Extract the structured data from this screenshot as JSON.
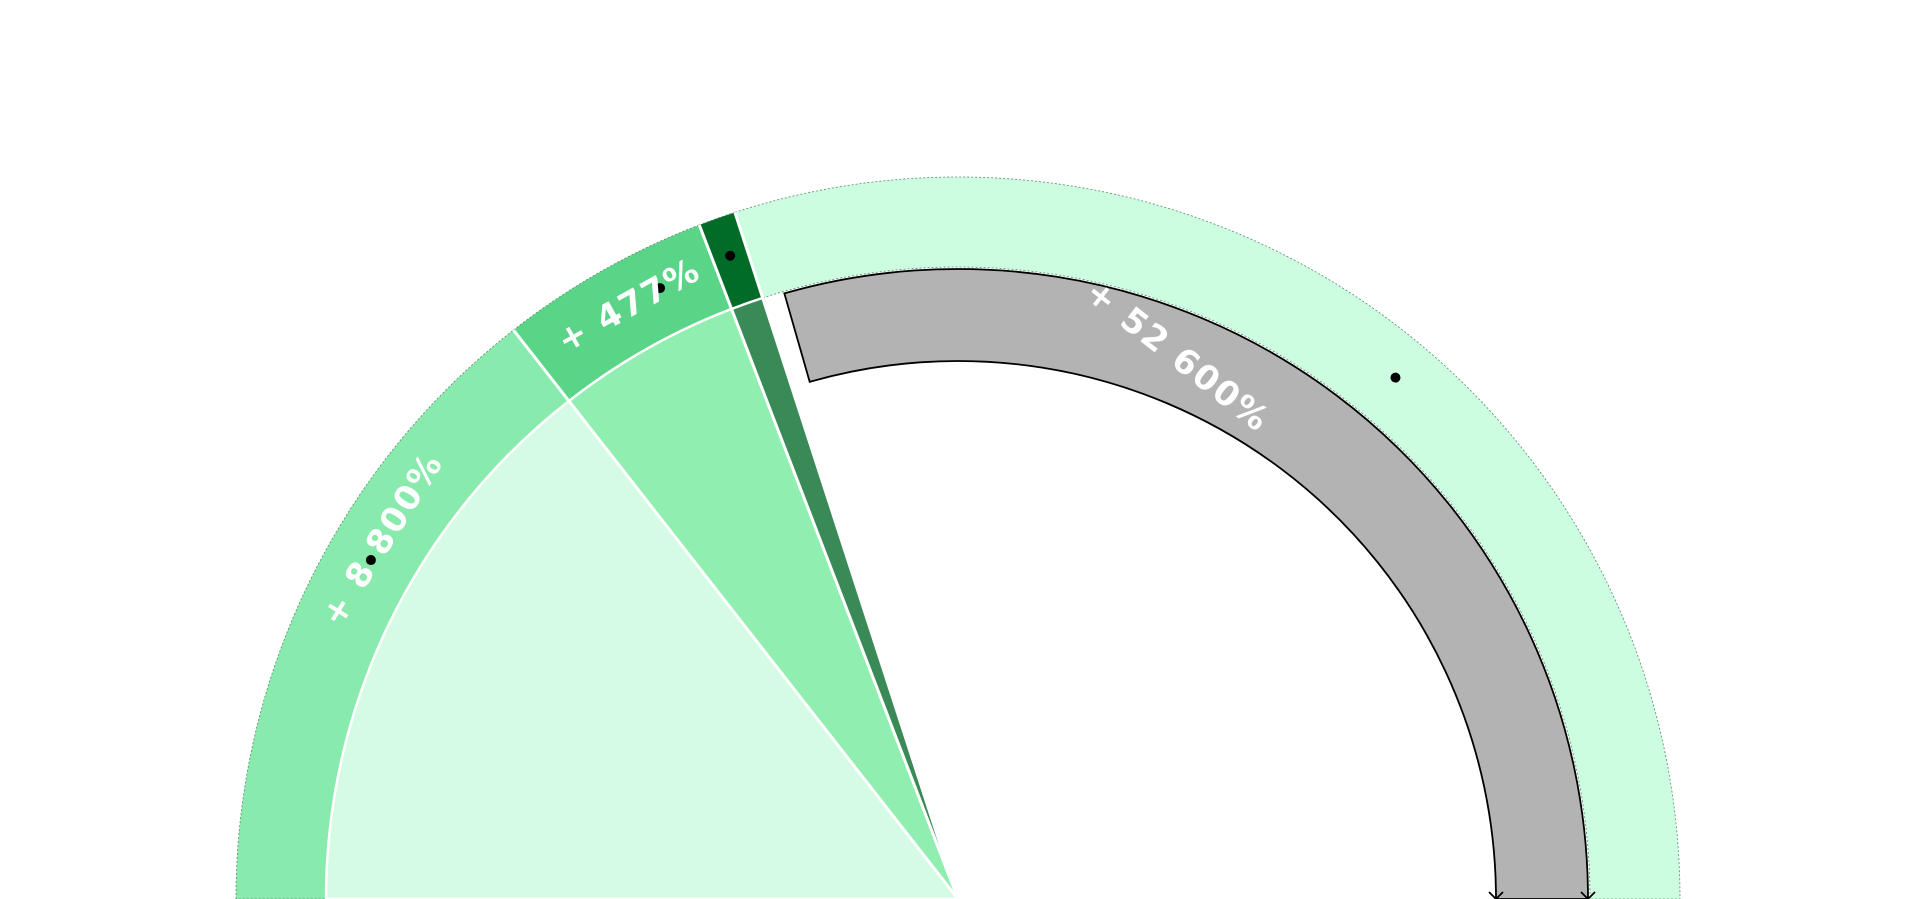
{
  "chart_data": {
    "type": "pie",
    "title": "",
    "colors": {
      "background": "#ffffff",
      "outer_base": "#ccfde0",
      "inner_base": "#d6fbe4",
      "inner_gray": "#b3b3b3",
      "palette": [
        "#88eaac",
        "#5ad486",
        "#016b28",
        "#ccfde0",
        "#8feeb0",
        "#3a8a57"
      ]
    },
    "outer_ring": {
      "segments": [
        {
          "label": "+ 8 800%",
          "start_deg": 180,
          "end_deg": 128,
          "color": "#88eaac",
          "show_label": true
        },
        {
          "label": "+ 477%",
          "start_deg": 128,
          "end_deg": 111,
          "color": "#5ad486",
          "show_label": true
        },
        {
          "label": "",
          "start_deg": 111,
          "end_deg": 108,
          "color": "#016b28",
          "show_label": false
        },
        {
          "label": "",
          "start_deg": 108,
          "end_deg": 0,
          "color": "#ccfde0",
          "show_label": false
        }
      ],
      "markers": [
        {
          "angle_deg": 150,
          "radius": 1.01
        },
        {
          "angle_deg": 116,
          "radius": 1.03
        },
        {
          "angle_deg": 109.5,
          "radius": 1.06
        },
        {
          "angle_deg": 50,
          "radius": 1.04
        }
      ]
    },
    "inner_ring": {
      "segments": [
        {
          "label": "",
          "start_deg": 180,
          "end_deg": 128,
          "color": "#d6fbe4",
          "type": "wedge"
        },
        {
          "label": "",
          "start_deg": 128,
          "end_deg": 111,
          "color": "#8feeb0",
          "type": "wedge"
        },
        {
          "label": "",
          "start_deg": 111,
          "end_deg": 108,
          "color": "#3a8a57",
          "type": "wedge"
        },
        {
          "label": "+ 52 600%",
          "start_deg": 106,
          "end_deg": 0,
          "color": "#b3b3b3",
          "type": "band"
        }
      ]
    },
    "labels": [
      {
        "id": "seg1",
        "text": "+ 8 800%"
      },
      {
        "id": "seg2",
        "text": "+ 477%"
      },
      {
        "id": "seg4",
        "text": "+ 52 600%"
      }
    ]
  }
}
